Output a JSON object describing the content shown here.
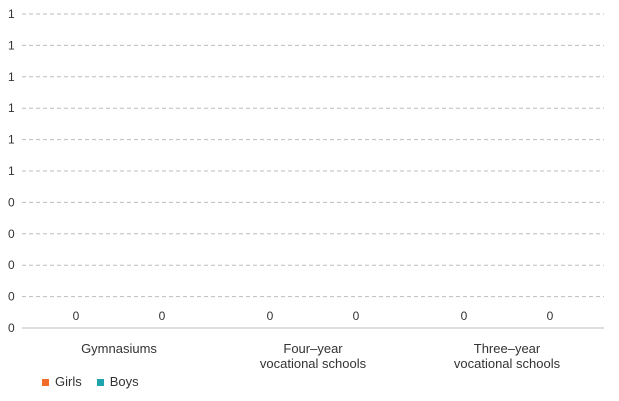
{
  "chart_data": {
    "type": "bar",
    "title": "",
    "xlabel": "",
    "ylabel": "",
    "categories": [
      [
        "Gymnasiums"
      ],
      [
        "Four–year",
        "vocational schools"
      ],
      [
        "Three–year",
        "vocational schools"
      ]
    ],
    "y_tick_labels": [
      "0",
      "0",
      "0",
      "0",
      "0",
      "1",
      "1",
      "1",
      "1",
      "1",
      "1"
    ],
    "series": [
      {
        "name": "Girls",
        "values": [
          0,
          0,
          0
        ],
        "color": "#f26c2a"
      },
      {
        "name": "Boys",
        "values": [
          0,
          0,
          0
        ],
        "color": "#1fa4ad"
      }
    ],
    "data_labels": [
      [
        "0",
        "0",
        "0"
      ],
      [
        "0",
        "0",
        "0"
      ]
    ],
    "ylim": [
      0,
      1
    ],
    "grid": true,
    "legend_position": "bottom-left"
  }
}
